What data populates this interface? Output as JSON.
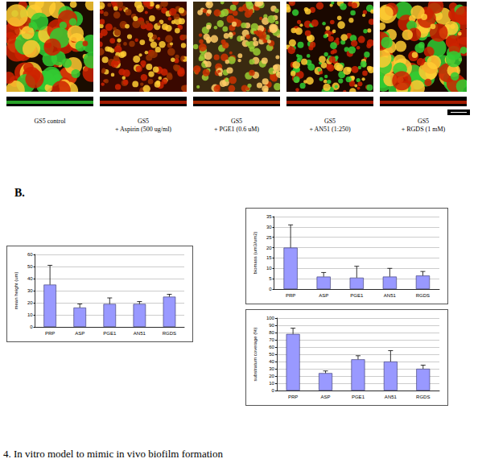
{
  "panel_a": {
    "images": [
      {
        "label": [
          "GS5 control"
        ]
      },
      {
        "label": [
          "GS5",
          "+ Aspirin (500 ug/ml)"
        ]
      },
      {
        "label": [
          "GS5",
          "+ PGE1 (0.6 uM)"
        ]
      },
      {
        "label": [
          "GS5",
          "+ AN51 (1:250)"
        ]
      },
      {
        "label": [
          "GS5",
          "+ RGDS (1 mM)"
        ]
      }
    ]
  },
  "panel_b_letter": "B.",
  "chart_data": [
    {
      "type": "bar",
      "y_label": "mean height (um)",
      "categories": [
        "PRP",
        "ASP",
        "PGE1",
        "AN51",
        "RGDS"
      ],
      "values": [
        35,
        16,
        19,
        19,
        25
      ],
      "errors": [
        16,
        3,
        5,
        2,
        2
      ],
      "color": "#9999ff",
      "ylim": [
        0,
        60
      ],
      "yticks": [
        0,
        10,
        20,
        30,
        40,
        50,
        60
      ],
      "grid": true
    },
    {
      "type": "bar",
      "y_label": "biomass (um3/um2)",
      "categories": [
        "PRP",
        "ASP",
        "PGE1",
        "AN51",
        "RGDS"
      ],
      "values": [
        20,
        6,
        5.5,
        6,
        6.5
      ],
      "errors": [
        11,
        2,
        5.5,
        4,
        2
      ],
      "color": "#9999ff",
      "ylim": [
        0,
        35
      ],
      "yticks": [
        0,
        5,
        10,
        15,
        20,
        25,
        30,
        35
      ],
      "grid": true
    },
    {
      "type": "bar",
      "y_label": "substratum coverage (%)",
      "categories": [
        "PRP",
        "ASP",
        "PGE1",
        "AN51",
        "RGDS"
      ],
      "values": [
        78,
        24,
        43,
        40,
        30
      ],
      "errors": [
        8,
        3,
        5,
        15,
        5
      ],
      "color": "#9999ff",
      "ylim": [
        0,
        100
      ],
      "yticks": [
        0,
        10,
        20,
        30,
        40,
        50,
        60,
        70,
        80,
        90,
        100
      ],
      "grid": true
    }
  ],
  "caption": "4. In vitro model to mimic in vivo biofilm formation"
}
